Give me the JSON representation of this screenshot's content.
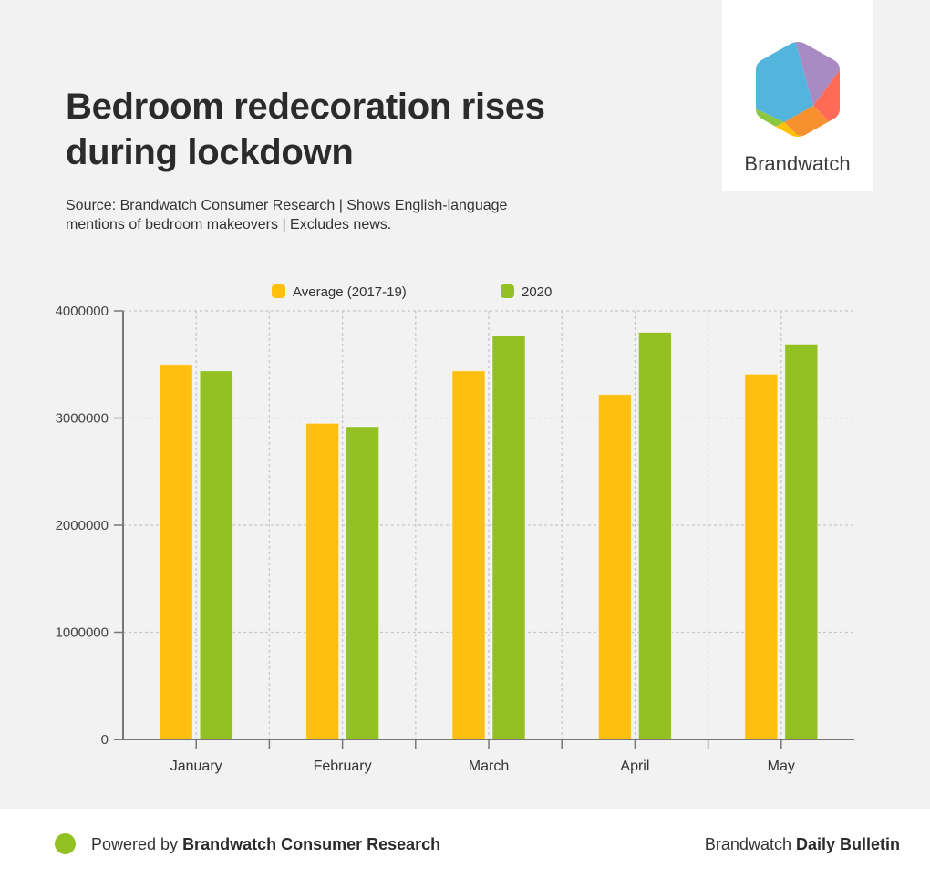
{
  "header": {
    "title": "Bedroom redecoration rises during lockdown",
    "subtitle": "Source: Brandwatch Consumer Research | Shows English-language mentions of bedroom makeovers | Excludes news."
  },
  "logo": {
    "text": "Brandwatch",
    "colors": [
      "#53b5de",
      "#a88bc3",
      "#ff6b57",
      "#f7902f",
      "#ffc107",
      "#8dc63f"
    ]
  },
  "chart_data": {
    "type": "bar",
    "title": "Bedroom redecoration rises during lockdown",
    "xlabel": "",
    "ylabel": "",
    "categories": [
      "January",
      "February",
      "March",
      "April",
      "May"
    ],
    "series": [
      {
        "name": "Average (2017-19)",
        "color": "#ffbf0f",
        "values": [
          3500000,
          2950000,
          3440000,
          3220000,
          3410000
        ]
      },
      {
        "name": "2020",
        "color": "#93c023",
        "values": [
          3440000,
          2920000,
          3770000,
          3800000,
          3690000
        ]
      }
    ],
    "ylim": [
      0,
      4000000
    ],
    "yticks": [
      0,
      1000000,
      2000000,
      3000000,
      4000000
    ],
    "ytick_labels": [
      "0",
      "1000000",
      "2000000",
      "3000000",
      "4000000"
    ],
    "grid": true,
    "legend_position": "top-center"
  },
  "footer": {
    "powered_prefix": "Powered by ",
    "powered_brand": "Brandwatch Consumer Research",
    "right_prefix": "Brandwatch ",
    "right_brand": "Daily Bulletin",
    "dot_color": "#93c023"
  }
}
